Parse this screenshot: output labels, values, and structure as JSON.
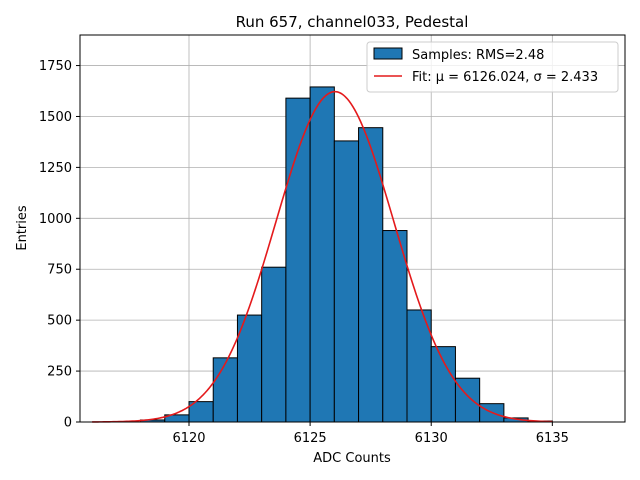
{
  "chart_data": {
    "type": "bar",
    "title": "Run 657, channel033, Pedestal",
    "xlabel": "ADC Counts",
    "ylabel": "Entries",
    "xlim": [
      6115.5,
      6138.0
    ],
    "ylim": [
      0,
      1900
    ],
    "xticks": [
      6120,
      6125,
      6130,
      6135
    ],
    "yticks": [
      0,
      250,
      500,
      750,
      1000,
      1250,
      1500,
      1750
    ],
    "grid": true,
    "legend_position": "top-right",
    "histogram": {
      "name": "Samples: RMS=2.48",
      "color": "#1f77b4",
      "bin_width": 1,
      "bin_starts": [
        6118,
        6119,
        6120,
        6121,
        6122,
        6123,
        6124,
        6125,
        6126,
        6127,
        6128,
        6129,
        6130,
        6131,
        6132,
        6133,
        6134
      ],
      "counts": [
        10,
        35,
        100,
        315,
        525,
        760,
        1590,
        1645,
        1380,
        1445,
        940,
        550,
        370,
        215,
        90,
        20,
        5
      ]
    },
    "fit": {
      "name": "Fit: μ = 6126.024, σ = 2.433",
      "color": "#e41a1c",
      "mu": 6126.024,
      "sigma": 2.433,
      "amplitude": 1622,
      "x_range": [
        6116,
        6135
      ]
    }
  }
}
